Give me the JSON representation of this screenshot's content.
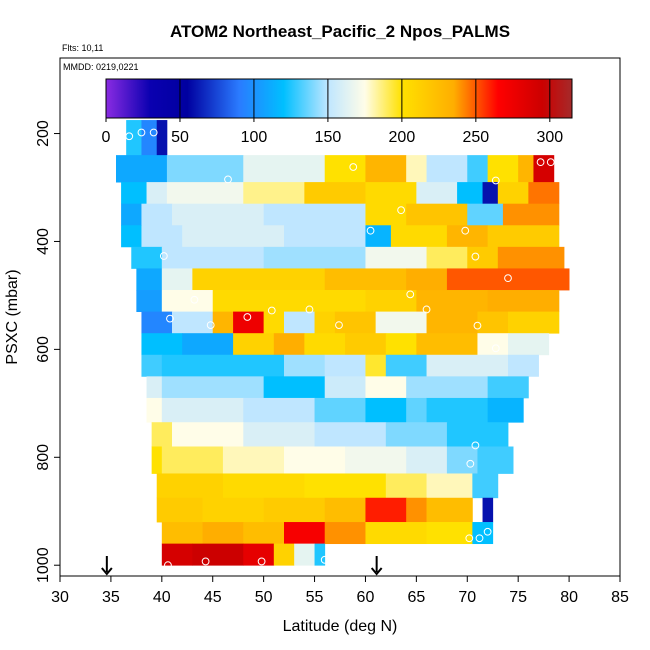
{
  "chart_data": {
    "type": "heatmap",
    "title": "ATOM2 Northeast_Pacific_2 Npos_PALMS",
    "flights_text": "Flts: 10,11",
    "dates_text": "MMDD: 0219,0221",
    "xlabel": "Latitude (deg N)",
    "ylabel": "PSXC (mbar)",
    "xlim": [
      30,
      85
    ],
    "ylim": [
      1020,
      60
    ],
    "x_ticks": [
      "30",
      "35",
      "40",
      "45",
      "50",
      "55",
      "60",
      "65",
      "70",
      "75",
      "80",
      "85"
    ],
    "y_ticks": [
      {
        "value": 200,
        "label": "200"
      },
      {
        "value": 400,
        "label": "400"
      },
      {
        "value": 600,
        "label": "600"
      },
      {
        "value": 800,
        "label": "800"
      },
      {
        "value": 1000,
        "label": "1000"
      }
    ],
    "colorbar": {
      "range": [
        0,
        315
      ],
      "ticks": [
        "0",
        "50",
        "100",
        "150",
        "200",
        "250",
        "300"
      ],
      "stops": [
        {
          "v": 0,
          "c": "#8a2be2"
        },
        {
          "v": 30,
          "c": "#0a00b0"
        },
        {
          "v": 55,
          "c": "#0000a0"
        },
        {
          "v": 90,
          "c": "#2a7bff"
        },
        {
          "v": 120,
          "c": "#00bfff"
        },
        {
          "v": 150,
          "c": "#bfe6ff"
        },
        {
          "v": 175,
          "c": "#fffde8"
        },
        {
          "v": 200,
          "c": "#ffe100"
        },
        {
          "v": 235,
          "c": "#ffae00"
        },
        {
          "v": 265,
          "c": "#ff0000"
        },
        {
          "v": 295,
          "c": "#cc0000"
        },
        {
          "v": 315,
          "c": "#a52a2a"
        }
      ]
    },
    "arrows": [
      34.6,
      61.1
    ],
    "rows": [
      {
        "p0": 175,
        "p1": 240,
        "segs": [
          [
            36.5,
            38.0,
            125
          ],
          [
            38.0,
            39.5,
            95
          ],
          [
            39.5,
            40.5,
            60
          ]
        ]
      },
      {
        "p0": 240,
        "p1": 290,
        "segs": [
          [
            35.5,
            40.5,
            110
          ],
          [
            40.5,
            48,
            140
          ],
          [
            48,
            56,
            165
          ],
          [
            56,
            60,
            200
          ],
          [
            60,
            64,
            230
          ],
          [
            64,
            66,
            180
          ],
          [
            66,
            70,
            150
          ],
          [
            70,
            72,
            130
          ],
          [
            72,
            75,
            200
          ],
          [
            75,
            76.5,
            230
          ],
          [
            76.5,
            78.5,
            290
          ]
        ]
      },
      {
        "p0": 290,
        "p1": 330,
        "segs": [
          [
            36.0,
            38.5,
            120
          ],
          [
            38.5,
            40.5,
            160
          ],
          [
            40.5,
            48,
            170
          ],
          [
            48,
            54,
            185
          ],
          [
            54,
            60,
            215
          ],
          [
            60,
            65,
            205
          ],
          [
            65,
            69,
            160
          ],
          [
            69,
            71.5,
            120
          ],
          [
            71.5,
            73,
            60
          ],
          [
            73,
            76,
            210
          ],
          [
            76,
            79,
            245
          ]
        ]
      },
      {
        "p0": 330,
        "p1": 370,
        "segs": [
          [
            36.0,
            38.0,
            110
          ],
          [
            38.0,
            41.0,
            150
          ],
          [
            41,
            50,
            160
          ],
          [
            50,
            60,
            150
          ],
          [
            60,
            64,
            205
          ],
          [
            64,
            70,
            220
          ],
          [
            70,
            73.5,
            135
          ],
          [
            73.5,
            79,
            240
          ]
        ]
      },
      {
        "p0": 370,
        "p1": 410,
        "segs": [
          [
            36.0,
            38.0,
            120
          ],
          [
            38.0,
            42,
            150
          ],
          [
            42,
            52,
            160
          ],
          [
            52,
            60,
            150
          ],
          [
            60,
            62.5,
            115
          ],
          [
            62.5,
            68,
            205
          ],
          [
            68,
            72,
            230
          ],
          [
            72,
            79,
            215
          ]
        ]
      },
      {
        "p0": 410,
        "p1": 450,
        "segs": [
          [
            37.0,
            40.0,
            125
          ],
          [
            40,
            50,
            150
          ],
          [
            50,
            60,
            145
          ],
          [
            60,
            66,
            170
          ],
          [
            66,
            70,
            190
          ],
          [
            70,
            73,
            215
          ],
          [
            73,
            79.5,
            240
          ]
        ]
      },
      {
        "p0": 450,
        "p1": 490,
        "segs": [
          [
            37.5,
            40.0,
            110
          ],
          [
            40,
            43,
            165
          ],
          [
            43,
            56,
            210
          ],
          [
            56,
            64,
            225
          ],
          [
            64,
            68,
            235
          ],
          [
            68,
            80,
            250
          ]
        ]
      },
      {
        "p0": 490,
        "p1": 530,
        "segs": [
          [
            37.5,
            40.0,
            105
          ],
          [
            40,
            45,
            175
          ],
          [
            45,
            60,
            205
          ],
          [
            60,
            65,
            210
          ],
          [
            65,
            72,
            230
          ],
          [
            72,
            79,
            235
          ]
        ]
      },
      {
        "p0": 530,
        "p1": 570,
        "segs": [
          [
            38.0,
            41.0,
            95
          ],
          [
            41,
            45,
            150
          ],
          [
            45,
            47,
            230
          ],
          [
            47,
            50,
            275
          ],
          [
            50,
            52,
            205
          ],
          [
            52,
            55,
            150
          ],
          [
            55,
            57,
            210
          ],
          [
            57,
            61,
            220
          ],
          [
            61,
            66,
            170
          ],
          [
            66,
            71,
            230
          ],
          [
            71,
            74,
            220
          ],
          [
            74,
            79,
            210
          ]
        ]
      },
      {
        "p0": 570,
        "p1": 610,
        "segs": [
          [
            38.0,
            42,
            120
          ],
          [
            42,
            47,
            110
          ],
          [
            47,
            51,
            210
          ],
          [
            51,
            54,
            235
          ],
          [
            54,
            58,
            205
          ],
          [
            58,
            62,
            215
          ],
          [
            62,
            65,
            200
          ],
          [
            65,
            71,
            225
          ],
          [
            71,
            74,
            175
          ],
          [
            74,
            78,
            165
          ]
        ]
      },
      {
        "p0": 610,
        "p1": 650,
        "segs": [
          [
            38.0,
            40,
            130
          ],
          [
            40,
            52,
            125
          ],
          [
            52,
            56,
            145
          ],
          [
            56,
            60,
            150
          ],
          [
            60,
            62,
            195
          ],
          [
            62,
            66,
            130
          ],
          [
            66,
            74,
            160
          ],
          [
            74,
            77,
            150
          ]
        ]
      },
      {
        "p0": 650,
        "p1": 690,
        "segs": [
          [
            38.5,
            40,
            160
          ],
          [
            40,
            50,
            145
          ],
          [
            50,
            56,
            120
          ],
          [
            56,
            60,
            155
          ],
          [
            60,
            64,
            175
          ],
          [
            64,
            72,
            145
          ],
          [
            72,
            76,
            130
          ]
        ]
      },
      {
        "p0": 690,
        "p1": 735,
        "segs": [
          [
            38.5,
            40,
            175
          ],
          [
            40,
            48,
            160
          ],
          [
            48,
            55,
            150
          ],
          [
            55,
            60,
            135
          ],
          [
            60,
            64,
            120
          ],
          [
            64,
            66,
            135
          ],
          [
            66,
            72,
            125
          ],
          [
            72,
            75.5,
            115
          ]
        ]
      },
      {
        "p0": 735,
        "p1": 780,
        "segs": [
          [
            39.0,
            41,
            190
          ],
          [
            41,
            48,
            175
          ],
          [
            48,
            55,
            160
          ],
          [
            55,
            62,
            150
          ],
          [
            62,
            68,
            140
          ],
          [
            68,
            74,
            125
          ]
        ]
      },
      {
        "p0": 780,
        "p1": 830,
        "segs": [
          [
            39.0,
            40,
            200
          ],
          [
            40,
            46,
            190
          ],
          [
            46,
            52,
            180
          ],
          [
            52,
            58,
            175
          ],
          [
            58,
            64,
            170
          ],
          [
            64,
            68,
            160
          ],
          [
            68,
            71,
            140
          ],
          [
            71,
            74.5,
            130
          ]
        ]
      },
      {
        "p0": 830,
        "p1": 875,
        "segs": [
          [
            39.5,
            46,
            210
          ],
          [
            46,
            54,
            205
          ],
          [
            54,
            62,
            200
          ],
          [
            62,
            66,
            190
          ],
          [
            66,
            70.5,
            180
          ],
          [
            70.5,
            73,
            130
          ]
        ]
      },
      {
        "p0": 875,
        "p1": 920,
        "segs": [
          [
            39.5,
            44,
            215
          ],
          [
            44,
            50,
            210
          ],
          [
            50,
            56,
            215
          ],
          [
            56,
            60,
            225
          ],
          [
            60,
            64,
            260
          ],
          [
            64,
            66,
            240
          ],
          [
            66,
            70.5,
            225
          ],
          [
            71.5,
            72.5,
            60
          ]
        ]
      },
      {
        "p0": 920,
        "p1": 960,
        "segs": [
          [
            40.0,
            44,
            225
          ],
          [
            44,
            48,
            235
          ],
          [
            48,
            52,
            225
          ],
          [
            52,
            56,
            270
          ],
          [
            56,
            60,
            240
          ],
          [
            60,
            66,
            205
          ],
          [
            66,
            70.5,
            200
          ],
          [
            70.5,
            72.5,
            120
          ]
        ]
      },
      {
        "p0": 960,
        "p1": 1000,
        "segs": [
          [
            40.0,
            43,
            290
          ],
          [
            43,
            48,
            295
          ],
          [
            48,
            51,
            280
          ],
          [
            51,
            53,
            210
          ],
          [
            53,
            55,
            165
          ],
          [
            55,
            56,
            125
          ]
        ]
      }
    ],
    "markers": [
      {
        "x": 35.0,
        "p": 235
      },
      {
        "x": 36.8,
        "p": 205
      },
      {
        "x": 38.0,
        "p": 198
      },
      {
        "x": 39.2,
        "p": 198
      },
      {
        "x": 67.8,
        "p": 218
      },
      {
        "x": 77.2,
        "p": 253
      },
      {
        "x": 78.2,
        "p": 253
      },
      {
        "x": 72.8,
        "p": 287
      },
      {
        "x": 46.5,
        "p": 285
      },
      {
        "x": 58.8,
        "p": 262
      },
      {
        "x": 63.5,
        "p": 342
      },
      {
        "x": 60.5,
        "p": 380
      },
      {
        "x": 69.8,
        "p": 380
      },
      {
        "x": 40.2,
        "p": 427
      },
      {
        "x": 70.8,
        "p": 428
      },
      {
        "x": 74.0,
        "p": 468
      },
      {
        "x": 43.2,
        "p": 508
      },
      {
        "x": 64.4,
        "p": 498
      },
      {
        "x": 50.8,
        "p": 528
      },
      {
        "x": 54.5,
        "p": 526
      },
      {
        "x": 66.0,
        "p": 526
      },
      {
        "x": 40.8,
        "p": 543
      },
      {
        "x": 44.8,
        "p": 555
      },
      {
        "x": 48.4,
        "p": 540
      },
      {
        "x": 57.4,
        "p": 555
      },
      {
        "x": 71.0,
        "p": 556
      },
      {
        "x": 72.8,
        "p": 598
      },
      {
        "x": 70.8,
        "p": 778
      },
      {
        "x": 70.3,
        "p": 812
      },
      {
        "x": 72.0,
        "p": 938
      },
      {
        "x": 70.2,
        "p": 950
      },
      {
        "x": 71.2,
        "p": 950
      },
      {
        "x": 40.6,
        "p": 1000
      },
      {
        "x": 44.3,
        "p": 993
      },
      {
        "x": 49.8,
        "p": 993
      },
      {
        "x": 56.0,
        "p": 990
      }
    ]
  }
}
